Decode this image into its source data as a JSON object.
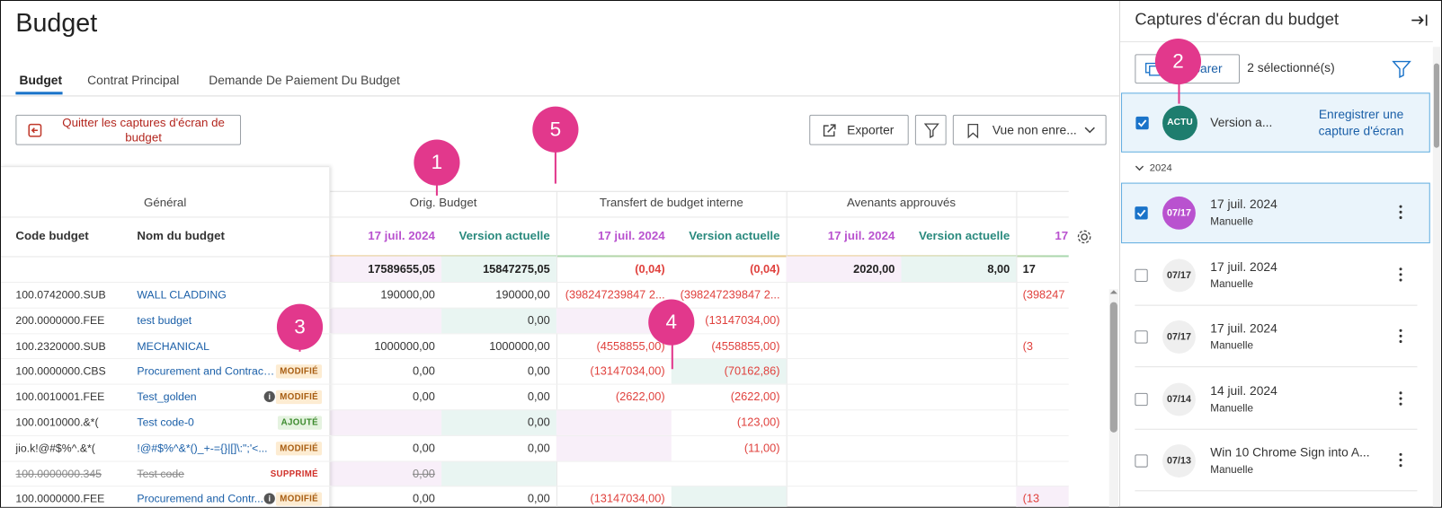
{
  "header": {
    "title": "Budget"
  },
  "tabs": [
    "Budget",
    "Contrat Principal",
    "Demande De Paiement Du Budget"
  ],
  "toolbar": {
    "quit": "Quitter les captures d'écran de budget",
    "export": "Exporter",
    "view": "Vue non enre..."
  },
  "table": {
    "groups": [
      "Général",
      "Orig. Budget",
      "Transfert de budget interne",
      "Avenants approuvés"
    ],
    "columns": [
      "Code budget",
      "Nom du budget"
    ],
    "subcolumns": [
      "17 juil. 2024",
      "Version actuelle",
      "17 juil. 2024",
      "Version actuelle",
      "17 juil. 2024",
      "Version actuelle",
      "17"
    ],
    "totals": [
      "17589655,05",
      "15847275,05",
      "(0,04)",
      "(0,04)",
      "2020,00",
      "8,00",
      "17"
    ],
    "negative_color": "#e0413d",
    "rows": [
      {
        "code": "100.0742000.SUB",
        "name": "WALL CLADDING",
        "values": [
          "190000,00",
          "190000,00",
          "(398247239847 2...",
          "(398247239847 2...",
          null,
          null,
          "(398247"
        ]
      },
      {
        "code": "200.0000000.FEE",
        "name": "test budget",
        "values": [
          null,
          "0,00",
          null,
          "(13147034,00)",
          null,
          null,
          null
        ]
      },
      {
        "code": "100.2320000.SUB",
        "name": "MECHANICAL",
        "values": [
          "1000000,00",
          "1000000,00",
          "(4558855,00)",
          "(4558855,00)",
          null,
          null,
          "(3"
        ]
      },
      {
        "code": "100.0000000.CBS",
        "name": "Procurement and Contract...",
        "status": "MODIFIÉ",
        "status_style": "orange",
        "values": [
          "0,00",
          "0,00",
          "(13147034,00)",
          "(70162,86)",
          null,
          null,
          null
        ]
      },
      {
        "code": "100.0010001.FEE",
        "name": "Test_golden",
        "info": true,
        "status": "MODIFIÉ",
        "status_style": "orange",
        "values": [
          "0,00",
          "0,00",
          "(2622,00)",
          "(2622,00)",
          null,
          null,
          null
        ]
      },
      {
        "code": "100.0010000.&*(",
        "name": "Test code-0",
        "status": "AJOUTÉ",
        "status_style": "green",
        "values": [
          null,
          "0,00",
          null,
          "(123,00)",
          null,
          null,
          null
        ]
      },
      {
        "code": "jio.k!@#$%^.&*(",
        "name": "!@#$%^&*()_+-={}|[]\\:\";'<...",
        "status": "MODIFIÉ",
        "status_style": "orange",
        "values": [
          "0,00",
          "0,00",
          null,
          "(11,00)",
          null,
          null,
          null
        ]
      },
      {
        "code": "100.0000000.345",
        "name": "Test code",
        "strike": true,
        "status": "SUPPRIMÉ",
        "status_style": "red",
        "values": [
          "0,00",
          null,
          null,
          null,
          null,
          null,
          null
        ]
      },
      {
        "code": "100.0000000.FEE",
        "name": "Procuremend and Contr...",
        "info": true,
        "status": "MODIFIÉ",
        "status_style": "orange",
        "values": [
          "0,00",
          "0,00",
          "(13147034,00)",
          null,
          null,
          null,
          "(13"
        ]
      }
    ]
  },
  "callouts": [
    "1",
    "2",
    "3",
    "4",
    "5"
  ],
  "panel": {
    "title": "Captures d'écran du budget",
    "compare": "Comparer",
    "selected": "2 sélectionné(s)",
    "current": {
      "badge": "ACTU",
      "name": "Version a...",
      "action": "Enregistrer une capture d'écran",
      "checked": true
    },
    "year": "2024",
    "items": [
      {
        "badge": "07/17",
        "title": "17 juil. 2024",
        "subtitle": "Manuelle",
        "checked": true
      },
      {
        "badge": "07/17",
        "title": "17 juil. 2024",
        "subtitle": "Manuelle",
        "checked": false
      },
      {
        "badge": "07/17",
        "title": "17 juil. 2024",
        "subtitle": "Manuelle",
        "checked": false
      },
      {
        "badge": "07/14",
        "title": "14 juil. 2024",
        "subtitle": "Manuelle",
        "checked": false
      },
      {
        "badge": "07/13",
        "title": "Win 10 Chrome Sign into A...",
        "subtitle": "Manuelle",
        "checked": false
      }
    ]
  }
}
